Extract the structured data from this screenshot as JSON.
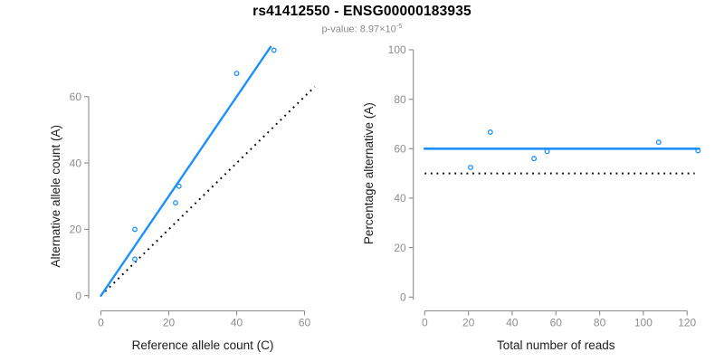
{
  "header": {
    "title": "rs41412550 - ENSG00000183935",
    "p_value_prefix": "p-value: 8.97×10",
    "p_value_exponent": "-5"
  },
  "colors": {
    "accent_blue": "#1E90FF",
    "axis_gray": "#8C8C8C",
    "tick_label_gray": "#8E8E8E",
    "axis_title_black": "#202020",
    "reference_black": "#000000",
    "background": "#FFFFFF"
  },
  "chart_data": [
    {
      "type": "scatter",
      "panel": "left",
      "xlabel": "Reference allele count (C)",
      "ylabel": "Alternative allele count (A)",
      "xticks": [
        0,
        20,
        40,
        60
      ],
      "yticks": [
        0,
        20,
        40,
        60
      ],
      "xlim": [
        0,
        63
      ],
      "ylim": [
        0,
        77
      ],
      "grid": false,
      "points": [
        {
          "x": 10,
          "y": 11
        },
        {
          "x": 10,
          "y": 20
        },
        {
          "x": 22,
          "y": 28
        },
        {
          "x": 23,
          "y": 33
        },
        {
          "x": 40,
          "y": 67
        },
        {
          "x": 51,
          "y": 74
        }
      ],
      "fit_line": {
        "x1": 0,
        "y1": 0,
        "x2": 50,
        "y2": 75,
        "style": "solid-blue"
      },
      "identity_line": {
        "x1": 0,
        "y1": 0,
        "x2": 63,
        "y2": 63,
        "style": "dotted-black"
      }
    },
    {
      "type": "scatter",
      "panel": "right",
      "xlabel": "Total number of reads",
      "ylabel": "Percentage alternative (A)",
      "xticks": [
        0,
        20,
        40,
        60,
        80,
        100,
        120
      ],
      "yticks": [
        0,
        20,
        40,
        60,
        80,
        100
      ],
      "xlim": [
        0,
        126
      ],
      "ylim": [
        0,
        100
      ],
      "grid": false,
      "points": [
        {
          "x": 21,
          "y": 52.4
        },
        {
          "x": 30,
          "y": 66.7
        },
        {
          "x": 50,
          "y": 56.0
        },
        {
          "x": 56,
          "y": 58.9
        },
        {
          "x": 107,
          "y": 62.6
        },
        {
          "x": 125,
          "y": 59.2
        }
      ],
      "fit_hline": {
        "y": 60,
        "x1": 0,
        "x2": 125.5,
        "style": "solid-blue"
      },
      "ref_hline": {
        "y": 50,
        "x1": 0,
        "x2": 123.5,
        "style": "dotted-black"
      }
    }
  ]
}
